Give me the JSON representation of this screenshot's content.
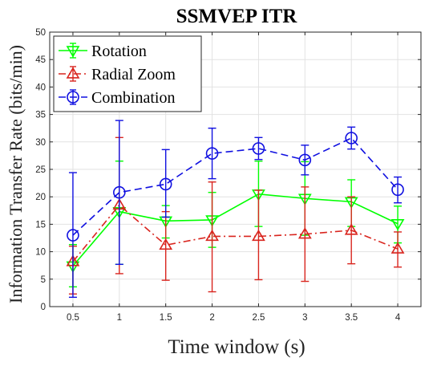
{
  "chart_data": {
    "type": "line",
    "title": "SSMVEP ITR",
    "xlabel": "Time window (s)",
    "ylabel": "Information Transfer Rate (bits/min)",
    "x": [
      0.5,
      1,
      1.5,
      2,
      2.5,
      3,
      3.5,
      4
    ],
    "x_tick_labels": [
      "0.5",
      "1",
      "1.5",
      "2",
      "2.5",
      "3",
      "3.5",
      "4"
    ],
    "xlim": [
      0.25,
      4.25
    ],
    "ylim": [
      0,
      50
    ],
    "y_ticks": [
      0,
      5,
      10,
      15,
      20,
      25,
      30,
      35,
      40,
      45,
      50
    ],
    "y_tick_labels": [
      "0",
      "5",
      "10",
      "15",
      "20",
      "25",
      "30",
      "35",
      "40",
      "45",
      "50"
    ],
    "grid": true,
    "legend_position": "top-left",
    "series": [
      {
        "name": "Rotation",
        "color": "#00ff00",
        "line_style": "solid",
        "marker": "triangle-down",
        "values": [
          7.4,
          17.3,
          15.6,
          15.8,
          20.5,
          19.7,
          19.1,
          15.1
        ],
        "err_low": [
          3.6,
          7.7,
          12.5,
          10.8,
          14.6,
          13.0,
          14.6,
          11.6
        ],
        "err_high": [
          11.3,
          26.5,
          18.4,
          20.8,
          26.5,
          26.4,
          23.1,
          18.3
        ]
      },
      {
        "name": "Radial Zoom",
        "color": "#d9251e",
        "line_style": "dashdot",
        "marker": "triangle-up",
        "values": [
          8.2,
          18.5,
          11.2,
          12.8,
          12.8,
          13.2,
          13.9,
          10.5
        ],
        "err_low": [
          2.3,
          6.0,
          4.8,
          2.7,
          4.9,
          4.6,
          7.8,
          7.2
        ],
        "err_high": [
          11.0,
          30.8,
          17.3,
          22.7,
          21.2,
          21.8,
          20.0,
          13.6
        ]
      },
      {
        "name": "Combination",
        "color": "#1010e0",
        "line_style": "dashed",
        "marker": "circle",
        "values": [
          13.0,
          20.8,
          22.3,
          27.9,
          28.8,
          26.7,
          30.7,
          21.3
        ],
        "err_low": [
          1.7,
          7.7,
          16.3,
          23.3,
          26.8,
          24.0,
          28.7,
          18.9
        ],
        "err_high": [
          24.4,
          33.9,
          28.6,
          32.5,
          30.8,
          29.4,
          32.7,
          23.6
        ]
      }
    ]
  }
}
